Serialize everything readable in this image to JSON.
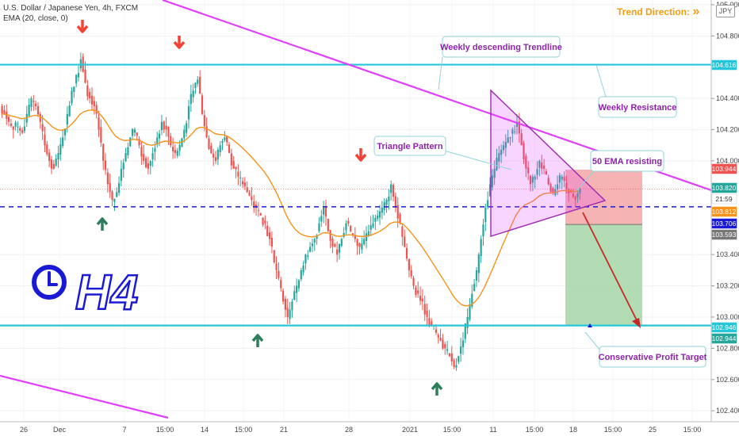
{
  "header": {
    "symbol_line": "U.S. Dollar / Japanese Yen, 4h, FXCM",
    "indicator_line": "EMA (20, close, 0)"
  },
  "trend_direction_label": "Trend Direction:",
  "trend_direction_arrows": "»",
  "currency_badge": "JPY",
  "annotations": {
    "weekly_trendline": "Weekly descending Trendline",
    "weekly_resistance": "Weekly Resistance",
    "triangle_pattern": "Triangle Pattern",
    "ema_resisting": "50 EMA resisting",
    "profit_target": "Conservative Profit Target",
    "timeframe_logo": "H4"
  },
  "price_tags": [
    {
      "text": "104.616",
      "bg": "#26c6da",
      "fg": "#ffffff"
    },
    {
      "text": "103.944",
      "bg": "#ef5350",
      "fg": "#ffffff"
    },
    {
      "text": "103.820",
      "bg": "#26a69a",
      "fg": "#ffffff"
    },
    {
      "text": "21:59",
      "bg": "#ffffff",
      "fg": "#333333"
    },
    {
      "text": "103.812",
      "bg": "#f7931a",
      "fg": "#ffffff"
    },
    {
      "text": "103.706",
      "bg": "#1a1ad6",
      "fg": "#ffffff"
    },
    {
      "text": "103.593",
      "bg": "#777777",
      "fg": "#ffffff"
    },
    {
      "text": "102.946",
      "bg": "#26c6da",
      "fg": "#ffffff"
    },
    {
      "text": "102.944",
      "bg": "#26a69a",
      "fg": "#ffffff"
    }
  ],
  "chart_data": {
    "type": "candlestick",
    "title": "U.S. Dollar / Japanese Yen, 4h, FXCM",
    "ylim": [
      102.35,
      105.0
    ],
    "y_ticks": [
      "105.000",
      "104.800",
      "104.400",
      "104.200",
      "104.000",
      "103.400",
      "103.200",
      "103.000",
      "102.800",
      "102.600",
      "102.400"
    ],
    "x_ticks": [
      "26",
      "Dec",
      "7",
      "15:00",
      "14",
      "15:00",
      "21",
      "28",
      "2021",
      "15:00",
      "11",
      "15:00",
      "18",
      "15:00",
      "25",
      "15:00"
    ],
    "levels": {
      "weekly_resistance": 104.616,
      "support": 102.946,
      "dashed_line": 103.706
    },
    "trade_box": {
      "stop_top": 103.944,
      "entry": 103.706,
      "target_bottom": 102.946
    },
    "series_close": [
      104.3,
      104.25,
      104.2,
      104.22,
      104.18,
      104.3,
      104.4,
      104.35,
      104.25,
      104.1,
      104.0,
      103.95,
      104.05,
      104.15,
      104.3,
      104.45,
      104.55,
      104.65,
      104.5,
      104.4,
      104.35,
      104.2,
      104.0,
      103.85,
      103.75,
      103.8,
      103.95,
      104.05,
      104.15,
      104.2,
      104.1,
      104.0,
      103.95,
      104.05,
      104.15,
      104.25,
      104.2,
      104.1,
      104.05,
      104.1,
      104.2,
      104.35,
      104.45,
      104.52,
      104.3,
      104.15,
      104.05,
      104.0,
      104.1,
      104.15,
      104.05,
      103.95,
      103.9,
      103.85,
      103.8,
      103.75,
      103.7,
      103.65,
      103.6,
      103.5,
      103.35,
      103.25,
      103.1,
      103.0,
      103.1,
      103.2,
      103.3,
      103.4,
      103.45,
      103.5,
      103.6,
      103.7,
      103.55,
      103.45,
      103.4,
      103.5,
      103.6,
      103.55,
      103.5,
      103.45,
      103.5,
      103.55,
      103.6,
      103.65,
      103.7,
      103.75,
      103.85,
      103.7,
      103.6,
      103.45,
      103.3,
      103.2,
      103.15,
      103.1,
      103.0,
      102.95,
      102.9,
      102.85,
      102.8,
      102.75,
      102.68,
      102.75,
      102.85,
      103.0,
      103.15,
      103.3,
      103.5,
      103.7,
      103.85,
      103.95,
      104.05,
      104.1,
      104.15,
      104.2,
      104.25,
      104.1,
      103.95,
      103.85,
      103.9,
      104.0,
      103.95,
      103.85,
      103.8,
      103.85,
      103.9,
      103.82,
      103.8,
      103.75,
      103.82
    ],
    "ema_label": "EMA (20, close, 0)",
    "arrows_down": 4,
    "arrows_up": 4
  }
}
